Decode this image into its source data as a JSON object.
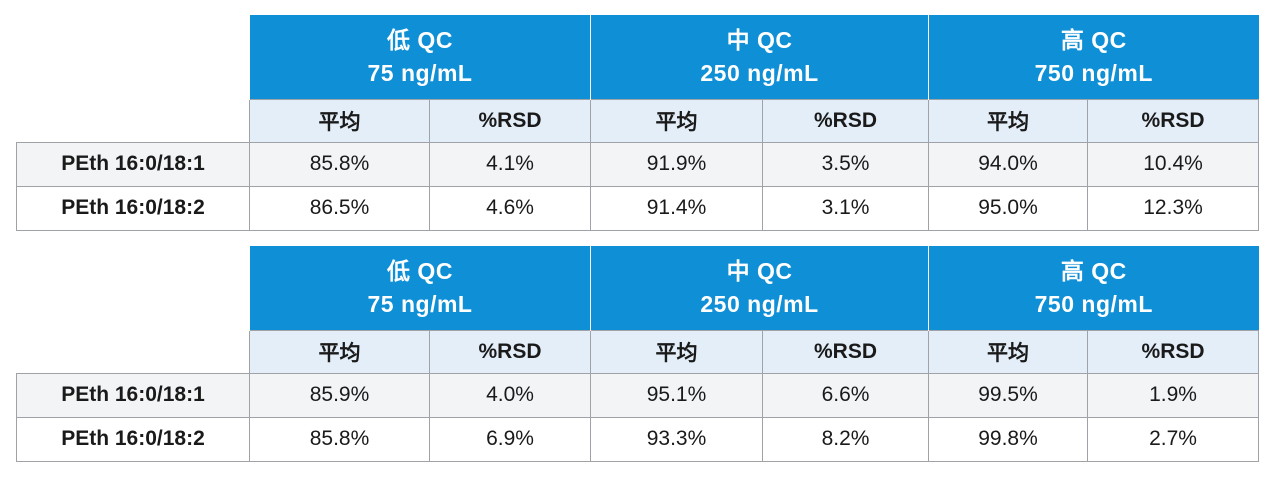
{
  "tables": [
    {
      "levels": [
        {
          "name": "低 QC",
          "conc": "75 ng/mL"
        },
        {
          "name": "中 QC",
          "conc": "250 ng/mL"
        },
        {
          "name": "高 QC",
          "conc": "750 ng/mL"
        }
      ],
      "sub_headers": [
        "平均",
        "%RSD",
        "平均",
        "%RSD",
        "平均",
        "%RSD"
      ],
      "rows": [
        {
          "label": "PEth 16:0/18:1",
          "values": [
            "85.8%",
            "4.1%",
            "91.9%",
            "3.5%",
            "94.0%",
            "10.4%"
          ]
        },
        {
          "label": "PEth 16:0/18:2",
          "values": [
            "86.5%",
            "4.6%",
            "91.4%",
            "3.1%",
            "95.0%",
            "12.3%"
          ]
        }
      ]
    },
    {
      "levels": [
        {
          "name": "低 QC",
          "conc": "75 ng/mL"
        },
        {
          "name": "中 QC",
          "conc": "250 ng/mL"
        },
        {
          "name": "高 QC",
          "conc": "750 ng/mL"
        }
      ],
      "sub_headers": [
        "平均",
        "%RSD",
        "平均",
        "%RSD",
        "平均",
        "%RSD"
      ],
      "rows": [
        {
          "label": "PEth 16:0/18:1",
          "values": [
            "85.9%",
            "4.0%",
            "95.1%",
            "6.6%",
            "99.5%",
            "1.9%"
          ]
        },
        {
          "label": "PEth 16:0/18:2",
          "values": [
            "85.8%",
            "6.9%",
            "93.3%",
            "8.2%",
            "99.8%",
            "2.7%"
          ]
        }
      ]
    }
  ],
  "colors": {
    "header_blue": "#0f8fd6",
    "subheader_bg": "#e3eef9",
    "shaded_row": "#f3f4f6",
    "border": "#9fa3a8"
  }
}
